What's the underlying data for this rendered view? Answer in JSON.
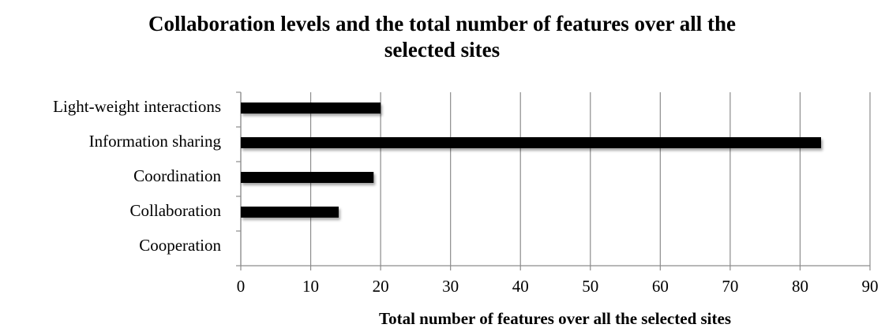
{
  "chart_data": {
    "type": "bar",
    "orientation": "horizontal",
    "title": "Collaboration levels and the total number of features over all the selected sites",
    "xlabel": "Total number of features over all the selected sites",
    "categories": [
      "Light-weight interactions",
      "Information sharing",
      "Coordination",
      "Collaboration",
      "Cooperation"
    ],
    "values": [
      20,
      83,
      19,
      14,
      0
    ],
    "color": "#000000",
    "xlim": [
      0,
      90
    ],
    "xticks": [
      0,
      10,
      20,
      30,
      40,
      50,
      60,
      70,
      80,
      90
    ],
    "grid": true
  }
}
